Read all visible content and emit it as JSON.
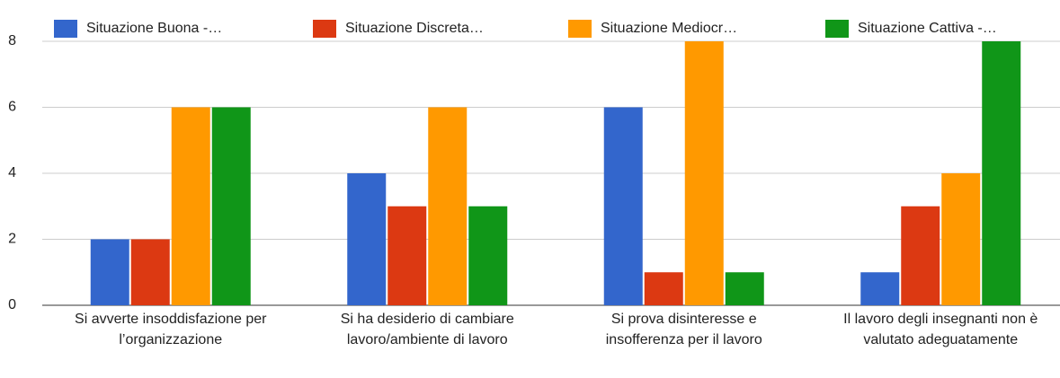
{
  "chart_data": {
    "type": "bar",
    "categories": [
      "Si avverte insoddisfazione per l’organizzazione",
      "Si ha desiderio di cambiare lavoro/ambiente di lavoro",
      "Si prova disinteresse e insofferenza per il lavoro",
      "Il lavoro degli insegnanti non è valutato adeguatamente"
    ],
    "series": [
      {
        "name": "Situazione Buona -…",
        "color": "#3366cc",
        "values": [
          2,
          4,
          6,
          1
        ]
      },
      {
        "name": "Situazione Discreta…",
        "color": "#dc3912",
        "values": [
          2,
          3,
          1,
          3
        ]
      },
      {
        "name": "Situazione Mediocr…",
        "color": "#ff9900",
        "values": [
          6,
          6,
          8,
          4
        ]
      },
      {
        "name": "Situazione Cattiva -…",
        "color": "#109618",
        "values": [
          6,
          3,
          1,
          8
        ]
      }
    ],
    "ylim": [
      0,
      8
    ],
    "yticks": [
      0,
      2,
      4,
      6,
      8
    ],
    "grid": true
  }
}
